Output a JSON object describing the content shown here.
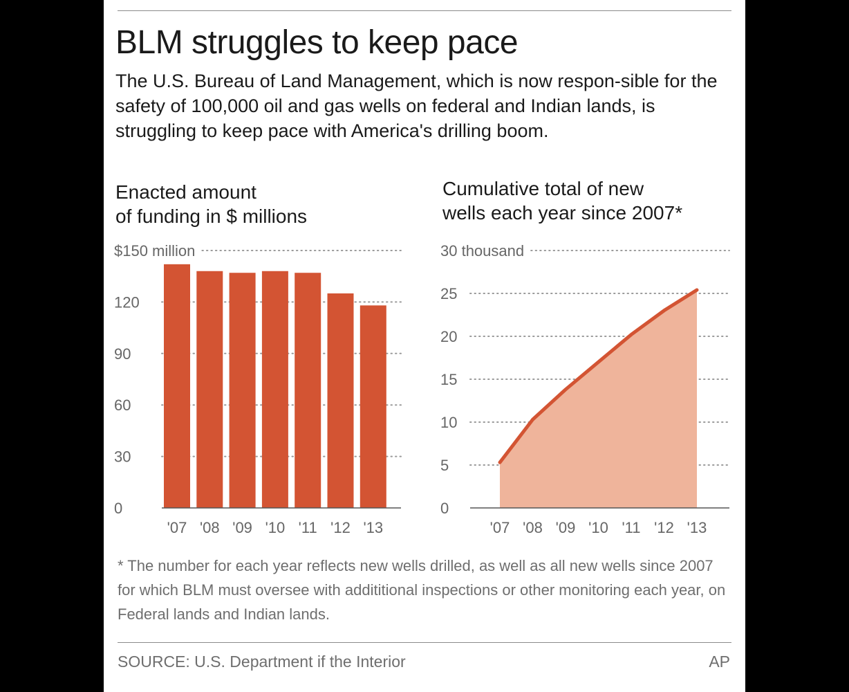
{
  "headline": "BLM struggles to keep pace",
  "intro": "The U.S. Bureau of Land Management, which is now respon-sible for the safety of 100,000 oil and gas wells on federal and Indian lands, is struggling to keep pace with America's drilling boom.",
  "footnote": "* The number for each year reflects new wells drilled, as well as all new wells since 2007 for which BLM must oversee with addititional inspections or other monitoring each year, on Federal lands and Indian lands.",
  "source": "SOURCE: U.S. Department if the Interior",
  "credit": "AP",
  "colors": {
    "bar": "#d35433",
    "line": "#d35433",
    "area": "#efb49b",
    "grid": "#9a9a9a"
  },
  "chart_data": [
    {
      "type": "bar",
      "title": "Enacted amount\nof funding in $ millions",
      "categories": [
        "'07",
        "'08",
        "'09",
        "'10",
        "'11",
        "'12",
        "'13"
      ],
      "values": [
        142,
        138,
        137,
        138,
        137,
        125,
        118
      ],
      "ylim": [
        0,
        150
      ],
      "ytick_values": [
        0,
        30,
        60,
        90,
        120,
        150
      ],
      "ytick_labels": [
        "0",
        "30",
        "60",
        "90",
        "120",
        "$150 million"
      ],
      "grid": true
    },
    {
      "type": "area",
      "title": "Cumulative total of new\nwells each year since 2007*",
      "categories": [
        "'07",
        "'08",
        "'09",
        "'10",
        "'11",
        "'12",
        "'13"
      ],
      "values": [
        5.3,
        10.3,
        13.8,
        17,
        20.2,
        23,
        25.4
      ],
      "ylim": [
        0,
        30
      ],
      "ytick_values": [
        0,
        5,
        10,
        15,
        20,
        25,
        30
      ],
      "ytick_labels": [
        "0",
        "5",
        "10",
        "15",
        "20",
        "25",
        "30 thousand"
      ],
      "grid": true
    }
  ]
}
